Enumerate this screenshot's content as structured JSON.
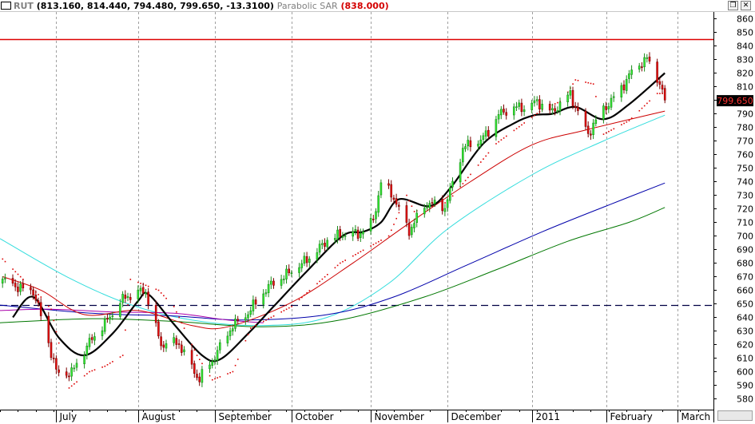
{
  "window": {
    "symbol": "RUT",
    "ohlc": "(813.160, 814.440, 794.480, 799.650, -13.3100)",
    "indicator_name": "Parabolic SAR",
    "indicator_value": "(838.000)",
    "restore_glyph": "❐",
    "close_glyph": "✕"
  },
  "colors": {
    "up": "#33ee33",
    "down": "#ee1111",
    "sar": "#dd0000",
    "ma_black": "#000000",
    "ma_red": "#cc0000",
    "ma_cyan": "#33dddd",
    "ma_blue": "#0000aa",
    "ma_green": "#007700",
    "purple": "#aa00aa",
    "resistance": "#dd0000",
    "support": "#000044",
    "grid": "#a0a0a0",
    "price_label_bg": "#000000",
    "price_label_fg": "#ff3333"
  },
  "chart_data": {
    "type": "candlestick",
    "symbol": "RUT",
    "last_price_label": "799.650",
    "ylim": [
      572,
      865
    ],
    "y_ticks": [
      580,
      590,
      600,
      610,
      620,
      630,
      640,
      650,
      660,
      670,
      680,
      690,
      700,
      710,
      720,
      730,
      740,
      750,
      760,
      770,
      780,
      790,
      800,
      810,
      820,
      830,
      840,
      850,
      860
    ],
    "months": [
      {
        "label": "",
        "start": "2010-06-01"
      },
      {
        "label": "July",
        "start": "2010-07-01"
      },
      {
        "label": "August",
        "start": "2010-08-02"
      },
      {
        "label": "September",
        "start": "2010-09-01"
      },
      {
        "label": "October",
        "start": "2010-10-01"
      },
      {
        "label": "November",
        "start": "2010-11-01"
      },
      {
        "label": "December",
        "start": "2010-12-01"
      },
      {
        "label": "2011",
        "start": "2011-01-03"
      },
      {
        "label": "February",
        "start": "2011-02-01"
      },
      {
        "label": "March",
        "start": "2011-03-01"
      }
    ],
    "x_range": [
      "2010-06-09",
      "2011-03-15"
    ],
    "horizontal_lines": [
      {
        "value": 845,
        "style": "solid",
        "color": "resistance"
      },
      {
        "value": 649,
        "style": "dashed",
        "color": "support"
      }
    ],
    "closes": [
      {
        "date": "2010-06-10",
        "close": 666
      },
      {
        "date": "2010-06-22",
        "close": 660
      },
      {
        "date": "2010-07-01",
        "close": 600
      },
      {
        "date": "2010-07-07",
        "close": 600
      },
      {
        "date": "2010-07-16",
        "close": 626
      },
      {
        "date": "2010-07-26",
        "close": 652
      },
      {
        "date": "2010-08-05",
        "close": 660
      },
      {
        "date": "2010-08-11",
        "close": 620
      },
      {
        "date": "2010-08-18",
        "close": 620
      },
      {
        "date": "2010-08-26",
        "close": 595
      },
      {
        "date": "2010-09-01",
        "close": 610
      },
      {
        "date": "2010-09-08",
        "close": 635
      },
      {
        "date": "2010-09-15",
        "close": 645
      },
      {
        "date": "2010-09-24",
        "close": 667
      },
      {
        "date": "2010-10-05",
        "close": 678
      },
      {
        "date": "2010-10-15",
        "close": 698
      },
      {
        "date": "2010-10-27",
        "close": 702
      },
      {
        "date": "2010-11-02",
        "close": 712
      },
      {
        "date": "2010-11-05",
        "close": 738
      },
      {
        "date": "2010-11-10",
        "close": 728
      },
      {
        "date": "2010-11-16",
        "close": 705
      },
      {
        "date": "2010-11-23",
        "close": 723
      },
      {
        "date": "2010-11-30",
        "close": 722
      },
      {
        "date": "2010-12-07",
        "close": 764
      },
      {
        "date": "2010-12-14",
        "close": 770
      },
      {
        "date": "2010-12-21",
        "close": 790
      },
      {
        "date": "2010-12-31",
        "close": 795
      },
      {
        "date": "2011-01-05",
        "close": 800
      },
      {
        "date": "2011-01-11",
        "close": 790
      },
      {
        "date": "2011-01-18",
        "close": 805
      },
      {
        "date": "2011-01-25",
        "close": 775
      },
      {
        "date": "2011-02-01",
        "close": 795
      },
      {
        "date": "2011-02-10",
        "close": 818
      },
      {
        "date": "2011-02-17",
        "close": 830
      },
      {
        "date": "2011-02-22",
        "close": 814
      },
      {
        "date": "2011-02-24",
        "close": 800
      }
    ],
    "sar_pivots": [
      {
        "date": "2010-06-10",
        "value": 683
      },
      {
        "date": "2010-06-25",
        "value": 655
      },
      {
        "date": "2010-06-29",
        "value": 646
      },
      {
        "date": "2010-07-06",
        "value": 588
      },
      {
        "date": "2010-07-14",
        "value": 600
      },
      {
        "date": "2010-07-20",
        "value": 604
      },
      {
        "date": "2010-07-27",
        "value": 612
      },
      {
        "date": "2010-07-30",
        "value": 668
      },
      {
        "date": "2010-08-10",
        "value": 660
      },
      {
        "date": "2010-08-16",
        "value": 648
      },
      {
        "date": "2010-08-25",
        "value": 612
      },
      {
        "date": "2010-08-31",
        "value": 594
      },
      {
        "date": "2010-09-08",
        "value": 600
      },
      {
        "date": "2010-09-15",
        "value": 632
      },
      {
        "date": "2010-10-01",
        "value": 648
      },
      {
        "date": "2010-10-20",
        "value": 680
      },
      {
        "date": "2010-11-08",
        "value": 700
      },
      {
        "date": "2010-11-15",
        "value": 730
      },
      {
        "date": "2010-11-18",
        "value": 718
      },
      {
        "date": "2010-12-01",
        "value": 725
      },
      {
        "date": "2010-12-20",
        "value": 768
      },
      {
        "date": "2011-01-07",
        "value": 793
      },
      {
        "date": "2011-01-15",
        "value": 800
      },
      {
        "date": "2011-01-20",
        "value": 815
      },
      {
        "date": "2011-01-27",
        "value": 812
      },
      {
        "date": "2011-01-31",
        "value": 775
      },
      {
        "date": "2011-02-10",
        "value": 785
      },
      {
        "date": "2011-02-21",
        "value": 805
      }
    ],
    "series": [
      {
        "color": "ma_black",
        "points": [
          {
            "date": "2010-06-14",
            "value": 640
          },
          {
            "date": "2010-06-22",
            "value": 655
          },
          {
            "date": "2010-07-02",
            "value": 625
          },
          {
            "date": "2010-07-12",
            "value": 612
          },
          {
            "date": "2010-07-23",
            "value": 628
          },
          {
            "date": "2010-08-02",
            "value": 652
          },
          {
            "date": "2010-08-06",
            "value": 657
          },
          {
            "date": "2010-08-16",
            "value": 635
          },
          {
            "date": "2010-08-27",
            "value": 612
          },
          {
            "date": "2010-09-03",
            "value": 609
          },
          {
            "date": "2010-09-14",
            "value": 628
          },
          {
            "date": "2010-09-24",
            "value": 648
          },
          {
            "date": "2010-10-06",
            "value": 672
          },
          {
            "date": "2010-10-21",
            "value": 700
          },
          {
            "date": "2010-10-29",
            "value": 703
          },
          {
            "date": "2010-11-05",
            "value": 710
          },
          {
            "date": "2010-11-12",
            "value": 727
          },
          {
            "date": "2010-11-24",
            "value": 722
          },
          {
            "date": "2010-12-02",
            "value": 735
          },
          {
            "date": "2010-12-15",
            "value": 768
          },
          {
            "date": "2010-12-27",
            "value": 783
          },
          {
            "date": "2011-01-04",
            "value": 789
          },
          {
            "date": "2011-01-11",
            "value": 790
          },
          {
            "date": "2011-01-20",
            "value": 795
          },
          {
            "date": "2011-01-31",
            "value": 786
          },
          {
            "date": "2011-02-10",
            "value": 797
          },
          {
            "date": "2011-02-24",
            "value": 820
          }
        ]
      },
      {
        "color": "ma_red",
        "points": [
          {
            "date": "2010-06-10",
            "value": 670
          },
          {
            "date": "2010-06-25",
            "value": 660
          },
          {
            "date": "2010-07-12",
            "value": 642
          },
          {
            "date": "2010-08-02",
            "value": 645
          },
          {
            "date": "2010-08-23",
            "value": 634
          },
          {
            "date": "2010-09-06",
            "value": 633
          },
          {
            "date": "2010-10-01",
            "value": 651
          },
          {
            "date": "2010-10-25",
            "value": 680
          },
          {
            "date": "2010-11-15",
            "value": 708
          },
          {
            "date": "2010-12-10",
            "value": 740
          },
          {
            "date": "2011-01-03",
            "value": 767
          },
          {
            "date": "2011-01-24",
            "value": 778
          },
          {
            "date": "2011-02-24",
            "value": 792
          }
        ]
      },
      {
        "color": "ma_cyan",
        "points": [
          {
            "date": "2010-06-09",
            "value": 698
          },
          {
            "date": "2010-07-05",
            "value": 670
          },
          {
            "date": "2010-07-29",
            "value": 650
          },
          {
            "date": "2010-08-23",
            "value": 638
          },
          {
            "date": "2010-09-20",
            "value": 634
          },
          {
            "date": "2010-10-15",
            "value": 640
          },
          {
            "date": "2010-11-08",
            "value": 665
          },
          {
            "date": "2010-12-01",
            "value": 705
          },
          {
            "date": "2011-01-03",
            "value": 745
          },
          {
            "date": "2011-01-31",
            "value": 770
          },
          {
            "date": "2011-02-24",
            "value": 789
          }
        ]
      },
      {
        "color": "ma_blue",
        "points": [
          {
            "date": "2010-06-09",
            "value": 649
          },
          {
            "date": "2010-07-15",
            "value": 643
          },
          {
            "date": "2010-08-16",
            "value": 641
          },
          {
            "date": "2010-09-13",
            "value": 638
          },
          {
            "date": "2010-10-15",
            "value": 642
          },
          {
            "date": "2010-11-10",
            "value": 655
          },
          {
            "date": "2010-12-08",
            "value": 678
          },
          {
            "date": "2011-01-07",
            "value": 703
          },
          {
            "date": "2011-02-01",
            "value": 722
          },
          {
            "date": "2011-02-24",
            "value": 739
          }
        ]
      },
      {
        "color": "ma_green",
        "points": [
          {
            "date": "2010-06-09",
            "value": 636
          },
          {
            "date": "2010-07-15",
            "value": 639
          },
          {
            "date": "2010-08-16",
            "value": 637
          },
          {
            "date": "2010-09-20",
            "value": 633
          },
          {
            "date": "2010-10-20",
            "value": 638
          },
          {
            "date": "2010-11-22",
            "value": 655
          },
          {
            "date": "2010-12-20",
            "value": 675
          },
          {
            "date": "2011-01-17",
            "value": 696
          },
          {
            "date": "2011-02-10",
            "value": 710
          },
          {
            "date": "2011-02-24",
            "value": 721
          }
        ]
      },
      {
        "color": "purple",
        "points": [
          {
            "date": "2010-06-09",
            "value": 645
          },
          {
            "date": "2010-06-29",
            "value": 646
          },
          {
            "date": "2010-07-22",
            "value": 644
          },
          {
            "date": "2010-08-16",
            "value": 643
          },
          {
            "date": "2010-09-06",
            "value": 638
          },
          {
            "date": "2010-09-20",
            "value": 636
          }
        ]
      }
    ]
  }
}
